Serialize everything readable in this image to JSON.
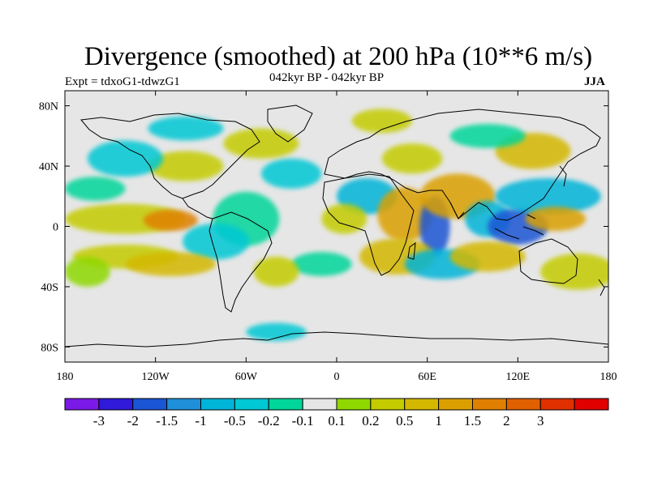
{
  "title": "Divergence (smoothed) at 200 hPa (10**6 m/s)",
  "experiment": "Expt = tdxoG1-tdwzG1",
  "period": "042kyr BP - 042kyr BP",
  "season": "JJA",
  "map": {
    "projection": "cylindrical-equidistant",
    "lon_range": [
      -180,
      180
    ],
    "lat_range": [
      -90,
      90
    ],
    "x_ticks": [
      {
        "lon": -180,
        "label": "180"
      },
      {
        "lon": -120,
        "label": "120W"
      },
      {
        "lon": -60,
        "label": "60W"
      },
      {
        "lon": 0,
        "label": "0"
      },
      {
        "lon": 60,
        "label": "60E"
      },
      {
        "lon": 120,
        "label": "120E"
      },
      {
        "lon": 180,
        "label": "180"
      }
    ],
    "y_ticks": [
      {
        "lat": 80,
        "label": "80N"
      },
      {
        "lat": 40,
        "label": "40N"
      },
      {
        "lat": 0,
        "label": "0"
      },
      {
        "lat": -40,
        "label": "40S"
      },
      {
        "lat": -80,
        "label": "80S"
      }
    ],
    "background_color": "#e6e6e6",
    "features": [
      {
        "lon": -60,
        "lat": 5,
        "rx": 22,
        "ry": 18,
        "level": 6
      },
      {
        "lon": -140,
        "lat": 5,
        "rx": 40,
        "ry": 10,
        "level": 9
      },
      {
        "lon": -110,
        "lat": 4,
        "rx": 18,
        "ry": 7,
        "level": 12
      },
      {
        "lon": -80,
        "lat": -10,
        "rx": 22,
        "ry": 12,
        "level": 5
      },
      {
        "lon": -140,
        "lat": -20,
        "rx": 35,
        "ry": 8,
        "level": 9
      },
      {
        "lon": -110,
        "lat": -25,
        "rx": 30,
        "ry": 8,
        "level": 10
      },
      {
        "lon": -165,
        "lat": -30,
        "rx": 15,
        "ry": 10,
        "level": 8
      },
      {
        "lon": -100,
        "lat": 40,
        "rx": 25,
        "ry": 10,
        "level": 9
      },
      {
        "lon": -140,
        "lat": 45,
        "rx": 25,
        "ry": 12,
        "level": 5
      },
      {
        "lon": -30,
        "lat": 35,
        "rx": 20,
        "ry": 10,
        "level": 5
      },
      {
        "lon": -50,
        "lat": 55,
        "rx": 25,
        "ry": 10,
        "level": 9
      },
      {
        "lon": 20,
        "lat": 20,
        "rx": 20,
        "ry": 12,
        "level": 4
      },
      {
        "lon": 5,
        "lat": 5,
        "rx": 15,
        "ry": 10,
        "level": 9
      },
      {
        "lon": 45,
        "lat": 8,
        "rx": 18,
        "ry": 18,
        "level": 11
      },
      {
        "lon": 65,
        "lat": 0,
        "rx": 10,
        "ry": 20,
        "level": 2
      },
      {
        "lon": 80,
        "lat": 20,
        "rx": 25,
        "ry": 15,
        "level": 11
      },
      {
        "lon": 100,
        "lat": 5,
        "rx": 15,
        "ry": 12,
        "level": 4
      },
      {
        "lon": 120,
        "lat": 0,
        "rx": 20,
        "ry": 12,
        "level": 2
      },
      {
        "lon": 140,
        "lat": 20,
        "rx": 35,
        "ry": 12,
        "level": 4
      },
      {
        "lon": 145,
        "lat": 5,
        "rx": 20,
        "ry": 8,
        "level": 11
      },
      {
        "lon": 160,
        "lat": -30,
        "rx": 25,
        "ry": 12,
        "level": 9
      },
      {
        "lon": 40,
        "lat": -20,
        "rx": 25,
        "ry": 12,
        "level": 10
      },
      {
        "lon": 70,
        "lat": -25,
        "rx": 25,
        "ry": 10,
        "level": 4
      },
      {
        "lon": 100,
        "lat": -20,
        "rx": 25,
        "ry": 10,
        "level": 10
      },
      {
        "lon": 130,
        "lat": 50,
        "rx": 25,
        "ry": 12,
        "level": 10
      },
      {
        "lon": 50,
        "lat": 45,
        "rx": 20,
        "ry": 10,
        "level": 9
      },
      {
        "lon": 100,
        "lat": 60,
        "rx": 25,
        "ry": 8,
        "level": 6
      },
      {
        "lon": -10,
        "lat": -25,
        "rx": 20,
        "ry": 8,
        "level": 6
      },
      {
        "lon": -40,
        "lat": -30,
        "rx": 15,
        "ry": 10,
        "level": 9
      },
      {
        "lon": 30,
        "lat": 70,
        "rx": 20,
        "ry": 8,
        "level": 9
      },
      {
        "lon": -160,
        "lat": 25,
        "rx": 20,
        "ry": 8,
        "level": 6
      },
      {
        "lon": -100,
        "lat": 65,
        "rx": 25,
        "ry": 8,
        "level": 5
      },
      {
        "lon": -40,
        "lat": -70,
        "rx": 20,
        "ry": 6,
        "level": 5
      }
    ]
  },
  "colorbar": {
    "colors": [
      "#7b19e6",
      "#3019d9",
      "#1a55d4",
      "#1e8fd8",
      "#00b4d8",
      "#00c8d4",
      "#00d69a",
      "#e6e6e6",
      "#8fd800",
      "#c4cc00",
      "#d4b800",
      "#dba000",
      "#e08000",
      "#e06000",
      "#e03000",
      "#e00000"
    ],
    "labels": [
      "-3",
      "-2",
      "-1.5",
      "-1",
      "-0.5",
      "-0.2",
      "-0.1",
      "0.1",
      "0.2",
      "0.5",
      "1",
      "1.5",
      "2",
      "3"
    ]
  }
}
